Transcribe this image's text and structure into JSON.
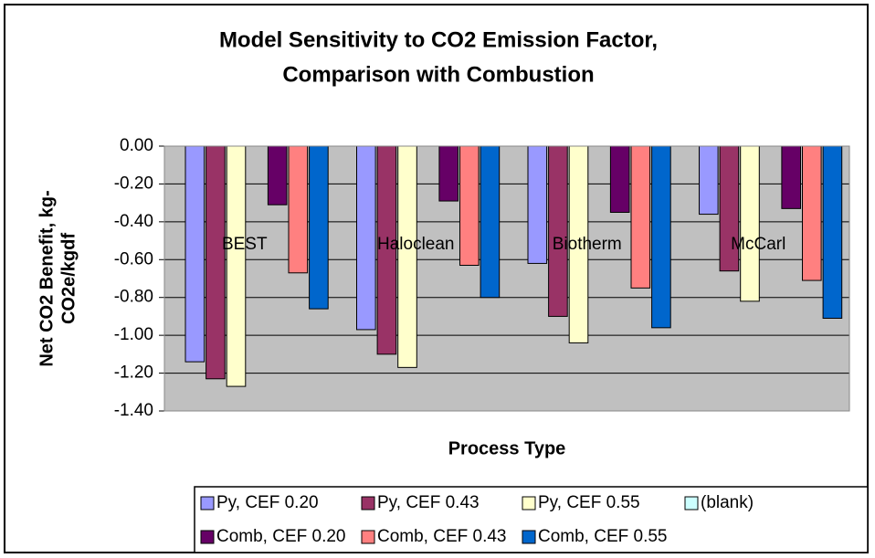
{
  "chart_data": {
    "type": "bar",
    "title": [
      "Model Sensitivity to CO2 Emission Factor,",
      "Comparison with Combustion"
    ],
    "y_label": [
      "Net CO2 Benefit, kg-",
      "CO2e/kgdf"
    ],
    "x_label": "Process Type",
    "categories": [
      "BEST",
      "Haloclean",
      "Biotherm",
      "McCarl"
    ],
    "series": [
      {
        "name": "Py, CEF 0.20",
        "color": "#9999ff",
        "values": [
          -1.14,
          -0.97,
          -0.62,
          -0.36
        ]
      },
      {
        "name": "Py, CEF 0.43",
        "color": "#993366",
        "values": [
          -1.23,
          -1.1,
          -0.9,
          -0.66
        ]
      },
      {
        "name": "Py, CEF 0.55",
        "color": "#ffffcc",
        "values": [
          -1.27,
          -1.17,
          -1.04,
          -0.82
        ]
      },
      {
        "name": "(blank)",
        "color": "#ccffff",
        "values": [
          null,
          null,
          null,
          null
        ]
      },
      {
        "name": "Comb, CEF 0.20",
        "color": "#660066",
        "values": [
          -0.31,
          -0.29,
          -0.35,
          -0.33
        ]
      },
      {
        "name": "Comb, CEF 0.43",
        "color": "#ff8080",
        "values": [
          -0.67,
          -0.63,
          -0.75,
          -0.71
        ]
      },
      {
        "name": "Comb, CEF 0.55",
        "color": "#0066cc",
        "values": [
          -0.86,
          -0.8,
          -0.96,
          -0.91
        ]
      }
    ],
    "ylim": [
      -1.4,
      0
    ],
    "yticks": [
      {
        "value": 0,
        "label": "0.00"
      },
      {
        "value": -0.2,
        "label": "-0.20"
      },
      {
        "value": -0.4,
        "label": "-0.40"
      },
      {
        "value": -0.6,
        "label": "-0.60"
      },
      {
        "value": -0.8,
        "label": "-0.80"
      },
      {
        "value": -1.0,
        "label": "-1.00"
      },
      {
        "value": -1.2,
        "label": "-1.20"
      },
      {
        "value": -1.4,
        "label": "-1.40"
      }
    ],
    "grid": true,
    "plot_background": "#c0c0c0",
    "legend": "bottom"
  }
}
